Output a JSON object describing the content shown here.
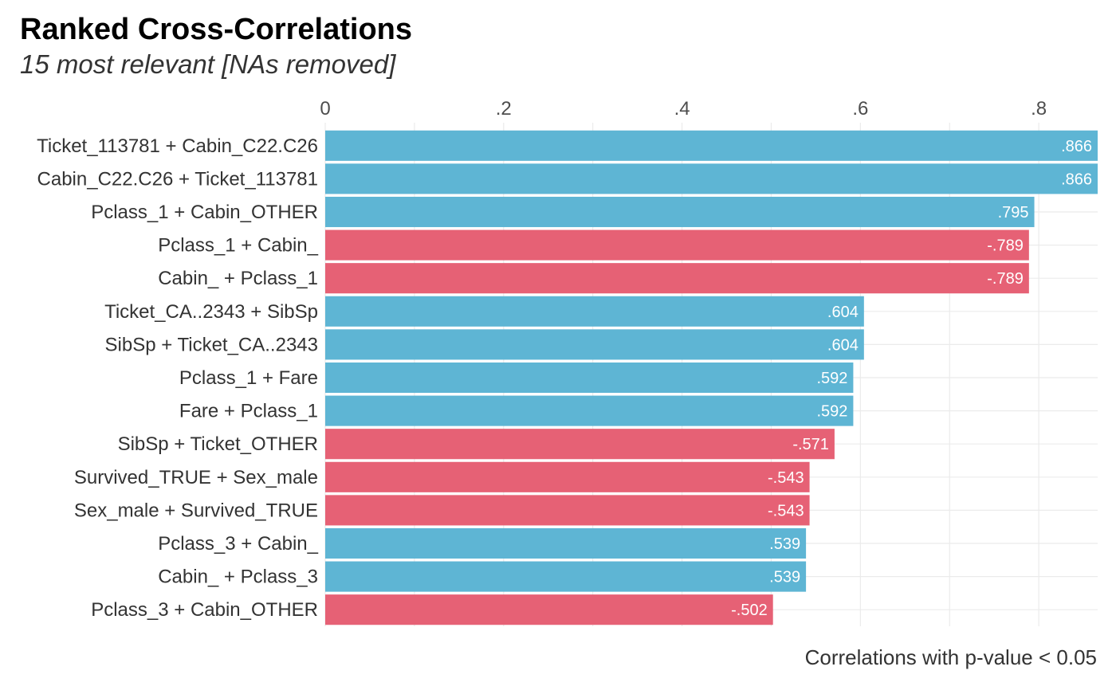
{
  "chart_data": {
    "type": "bar",
    "orientation": "horizontal",
    "title": "Ranked Cross-Correlations",
    "subtitle": "15 most relevant [NAs removed]",
    "caption": "Correlations with p-value < 0.05",
    "xlim": [
      0,
      0.866
    ],
    "x_ticks": [
      {
        "value": 0,
        "label": "0"
      },
      {
        "value": 0.2,
        "label": ".2"
      },
      {
        "value": 0.4,
        "label": ".4"
      },
      {
        "value": 0.6,
        "label": ".6"
      },
      {
        "value": 0.8,
        "label": ".8"
      }
    ],
    "x_axis_position": "top",
    "grid": true,
    "legend": "none",
    "categories": [
      "Ticket_113781 + Cabin_C22.C26",
      "Cabin_C22.C26 + Ticket_113781",
      "Pclass_1 + Cabin_OTHER",
      "Pclass_1 + Cabin_",
      "Cabin_ + Pclass_1",
      "Ticket_CA..2343 + SibSp",
      "SibSp + Ticket_CA..2343",
      "Pclass_1 + Fare",
      "Fare + Pclass_1",
      "SibSp + Ticket_OTHER",
      "Survived_TRUE + Sex_male",
      "Sex_male + Survived_TRUE",
      "Pclass_3 + Cabin_",
      "Cabin_ + Pclass_3",
      "Pclass_3 + Cabin_OTHER"
    ],
    "values": [
      0.866,
      0.866,
      0.795,
      -0.789,
      -0.789,
      0.604,
      0.604,
      0.592,
      0.592,
      -0.571,
      -0.543,
      -0.543,
      0.539,
      0.539,
      -0.502
    ],
    "value_labels": [
      ".866",
      ".866",
      ".795",
      "-.789",
      "-.789",
      ".604",
      ".604",
      ".592",
      ".592",
      "-.571",
      "-.543",
      "-.543",
      ".539",
      ".539",
      "-.502"
    ],
    "bar_length": "absolute value",
    "colors": {
      "positive": "#5EB5D4",
      "negative": "#E66175",
      "grid": "#EBEBEB",
      "text": "#333333"
    }
  }
}
